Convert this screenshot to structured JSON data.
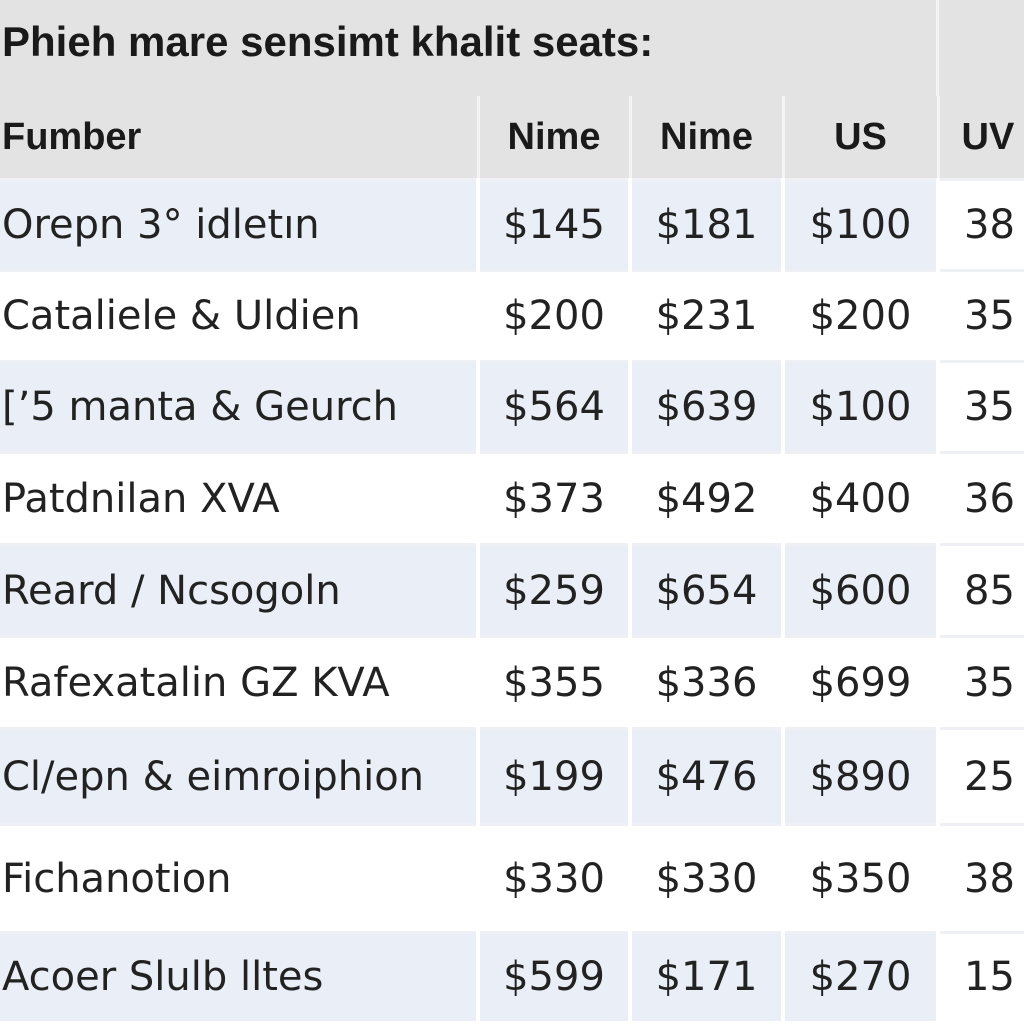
{
  "title": "Phieh mare sensimt khalit seats:",
  "table": {
    "headers": [
      "Fumber",
      "Nime",
      "Nime",
      "US",
      "UV"
    ],
    "rows": [
      {
        "name": "Orepn 3° idletın",
        "v1": "$145",
        "v2": "$181",
        "v3": "$100",
        "v4": "38"
      },
      {
        "name": "Cataliele & Uldien",
        "v1": "$200",
        "v2": "$231",
        "v3": "$200",
        "v4": "35"
      },
      {
        "name": "[’5 manta & Geurch",
        "v1": "$564",
        "v2": "$639",
        "v3": "$100",
        "v4": "35"
      },
      {
        "name": "Patdnilan XVA",
        "v1": "$373",
        "v2": "$492",
        "v3": "$400",
        "v4": "36"
      },
      {
        "name": "Reard / Ncsogoln",
        "v1": "$259",
        "v2": "$654",
        "v3": "$600",
        "v4": "85"
      },
      {
        "name": "Rafexatalin GZ KVA",
        "v1": "$355",
        "v2": "$336",
        "v3": "$699",
        "v4": "35"
      },
      {
        "name": "Cl/epn & eimroiphion",
        "v1": "$199",
        "v2": "$476",
        "v3": "$890",
        "v4": "25"
      },
      {
        "name": "Fichanotion",
        "v1": "$330",
        "v2": "$330",
        "v3": "$350",
        "v4": "38"
      },
      {
        "name": "Acoer Slulb lltes",
        "v1": "$599",
        "v2": "$171",
        "v3": "$270",
        "v4": "15"
      }
    ]
  },
  "colors": {
    "header_bg": "#e3e3e3",
    "row_alt_bg": "#e9eef7",
    "row_plain_bg": "#ffffff",
    "text": "#222222"
  }
}
